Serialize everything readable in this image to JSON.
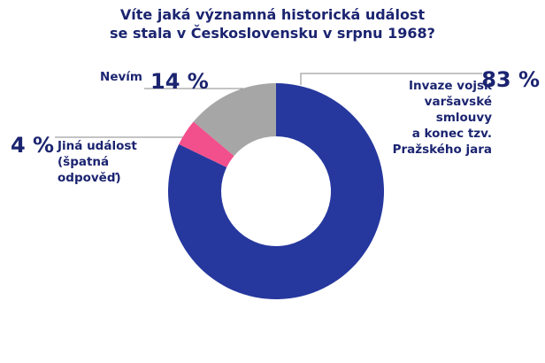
{
  "chart_data": {
    "type": "donut",
    "title": "Víte jaká významná historická událost\nse stala v Československu v srpnu 1968?",
    "categories": [
      "Invaze vojsk\nvaršavské\nsmlouvy\na konec tzv.\nPražského jara",
      "Jiná událost\n(špatná\nodpověď)",
      "Nevím"
    ],
    "values": [
      83,
      4,
      14
    ],
    "value_labels": [
      "83 %",
      "4 %",
      "14 %"
    ],
    "colors": [
      "#26389e",
      "#f2508c",
      "#a6a6a6"
    ]
  }
}
